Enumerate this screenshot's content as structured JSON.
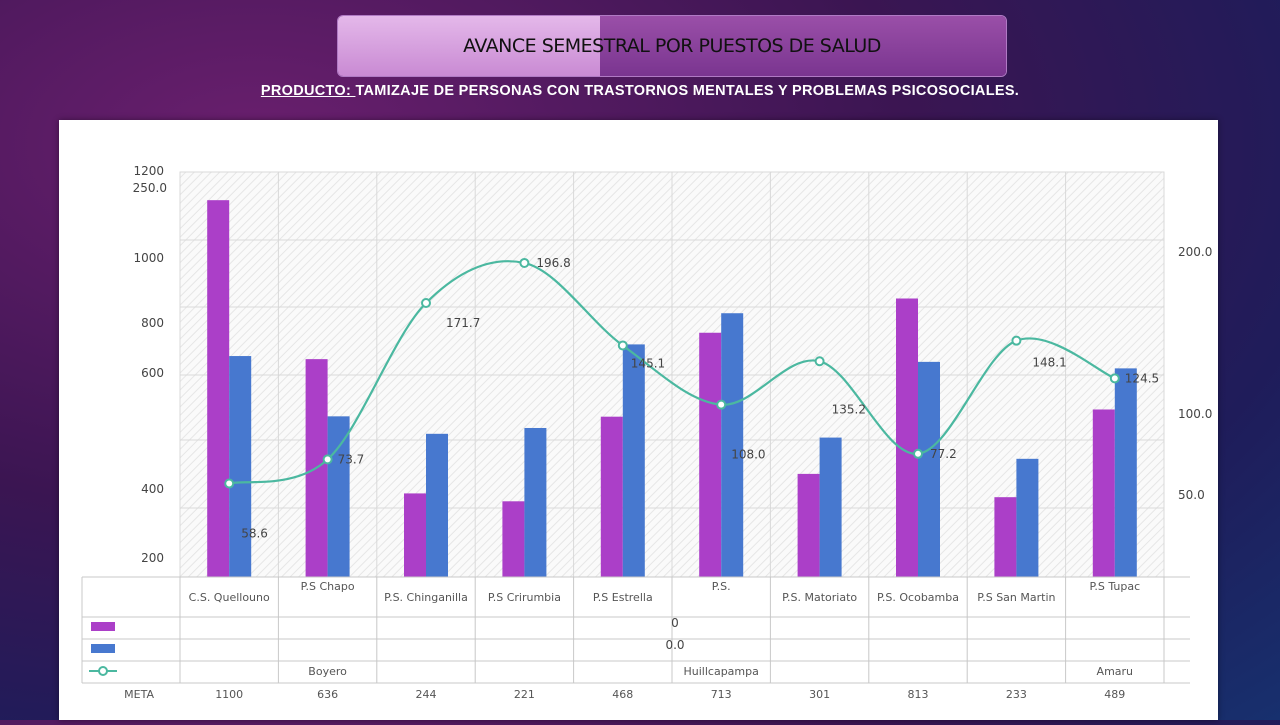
{
  "title": "AVANCE SEMESTRAL POR PUESTOS DE SALUD",
  "subtitle_prefix": "PRODUCTO: ",
  "subtitle_rest": "TAMIZAJE DE PERSONAS CON TRASTORNOS MENTALES Y PROBLEMAS PSICOSOCIALES.",
  "colors": {
    "meta": "#ab3fc8",
    "avance": "#4778cf",
    "line": "#4bb8a0"
  },
  "chart_data": {
    "type": "bar",
    "categories": [
      "C.S. Quellouno",
      "P.S Chapo",
      "P.S. Chinganilla",
      "P.S Crirumbia",
      "P.S Estrella",
      "P.S.",
      "P.S. Matoriato",
      "P.S. Ocobamba",
      "P.S San Martin",
      "P.S Tupac"
    ],
    "category_line2": [
      "",
      "Boyero",
      "",
      "",
      "",
      "Huillcapampa",
      "",
      "",
      "",
      "Amaru"
    ],
    "series": [
      {
        "name": "META",
        "kind": "bar",
        "axis": "left",
        "values": [
          1100,
          636,
          244,
          221,
          468,
          713,
          301,
          813,
          233,
          489
        ]
      },
      {
        "name": "",
        "kind": "bar",
        "axis": "left",
        "values": [
          645,
          469,
          418,
          435,
          679,
          770,
          407,
          628,
          345,
          609
        ]
      },
      {
        "name": "",
        "kind": "line",
        "axis": "right",
        "values": [
          58.6,
          73.7,
          171.7,
          196.8,
          145.1,
          108.0,
          135.2,
          77.2,
          148.1,
          124.5
        ]
      }
    ],
    "left_axis_ticks": [
      "1200",
      "1000",
      "800",
      "600",
      "400",
      "200"
    ],
    "right_axis_ticks": [
      "250.0",
      "200.0",
      "100.0",
      "50.0"
    ],
    "table_row2_text": "0",
    "table_row3_text": "0.0",
    "meta_row_label": "META",
    "meta_row_values": [
      "1100",
      "636",
      "244",
      "221",
      "468",
      "713",
      "301",
      "813",
      "233",
      "489"
    ]
  }
}
